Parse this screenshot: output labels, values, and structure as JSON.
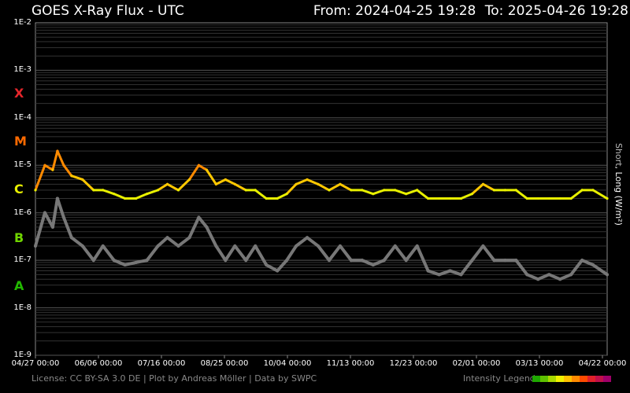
{
  "header": {
    "title": "GOES X-Ray Flux - UTC",
    "from": "From: 2024-04-25 19:28",
    "to": "To: 2025-04-26 19:28"
  },
  "flare_classes": [
    {
      "label": "X",
      "color": "#e4262b"
    },
    {
      "label": "M",
      "color": "#ff6a00"
    },
    {
      "label": "C",
      "color": "#e8f000"
    },
    {
      "label": "B",
      "color": "#6fd400"
    },
    {
      "label": "A",
      "color": "#22b800"
    }
  ],
  "right_axis_label": {
    "short": "Short",
    "sep": ", ",
    "long": "Long (W/m²)"
  },
  "footer": {
    "license": "License: CC BY-SA 3.0 DE | Plot by Andreas Möller | Data by SWPC",
    "legend_label": "Intensity Legend",
    "legend_colors": [
      "#1fa800",
      "#5ec000",
      "#a8d800",
      "#f0f000",
      "#ffc000",
      "#ff8a00",
      "#ff4a00",
      "#e0202a",
      "#c0104a",
      "#a0006a"
    ]
  },
  "chart_data": {
    "type": "line",
    "title": "GOES X-Ray Flux - UTC",
    "yscale": "log",
    "ylim": [
      1e-09,
      0.01
    ],
    "ylabel": "Short, Long (W/m²)",
    "ytick_labels": [
      "1E-2",
      "1E-3",
      "1E-4",
      "1E-5",
      "1E-6",
      "1E-7",
      "1E-8",
      "1E-9"
    ],
    "xlim": [
      "2024-04-27",
      "2025-04-26"
    ],
    "xtick_labels": [
      "04/27 00:00",
      "06/06 00:00",
      "07/16 00:00",
      "08/25 00:00",
      "10/04 00:00",
      "11/13 00:00",
      "12/23 00:00",
      "02/01 00:00",
      "03/13 00:00",
      "04/22 00:00"
    ],
    "grid": true,
    "series": [
      {
        "name": "Long",
        "color_scale": "intensity",
        "x": [
          "2024-04-27",
          "2024-05-03",
          "2024-05-08",
          "2024-05-11",
          "2024-05-15",
          "2024-05-20",
          "2024-05-27",
          "2024-06-03",
          "2024-06-09",
          "2024-06-16",
          "2024-06-23",
          "2024-06-30",
          "2024-07-07",
          "2024-07-14",
          "2024-07-20",
          "2024-07-27",
          "2024-08-03",
          "2024-08-09",
          "2024-08-14",
          "2024-08-20",
          "2024-08-26",
          "2024-09-01",
          "2024-09-08",
          "2024-09-14",
          "2024-09-21",
          "2024-09-28",
          "2024-10-04",
          "2024-10-10",
          "2024-10-17",
          "2024-10-24",
          "2024-10-31",
          "2024-11-07",
          "2024-11-14",
          "2024-11-21",
          "2024-11-28",
          "2024-12-05",
          "2024-12-12",
          "2024-12-19",
          "2024-12-26",
          "2025-01-02",
          "2025-01-09",
          "2025-01-16",
          "2025-01-23",
          "2025-01-30",
          "2025-02-06",
          "2025-02-13",
          "2025-02-20",
          "2025-02-27",
          "2025-03-06",
          "2025-03-13",
          "2025-03-20",
          "2025-03-27",
          "2025-04-03",
          "2025-04-10",
          "2025-04-17",
          "2025-04-26"
        ],
        "y": [
          3e-06,
          1e-05,
          8e-06,
          2e-05,
          1e-05,
          6e-06,
          5e-06,
          3e-06,
          3e-06,
          2.5e-06,
          2e-06,
          2e-06,
          2.5e-06,
          3e-06,
          4e-06,
          3e-06,
          5e-06,
          1e-05,
          8e-06,
          4e-06,
          5e-06,
          4e-06,
          3e-06,
          3e-06,
          2e-06,
          2e-06,
          2.5e-06,
          4e-06,
          5e-06,
          4e-06,
          3e-06,
          4e-06,
          3e-06,
          3e-06,
          2.5e-06,
          3e-06,
          3e-06,
          2.5e-06,
          3e-06,
          2e-06,
          2e-06,
          2e-06,
          2e-06,
          2.5e-06,
          4e-06,
          3e-06,
          3e-06,
          3e-06,
          2e-06,
          2e-06,
          2e-06,
          2e-06,
          2e-06,
          3e-06,
          3e-06,
          2e-06
        ]
      },
      {
        "name": "Short",
        "color": "#777777",
        "x": [
          "2024-04-27",
          "2024-05-03",
          "2024-05-08",
          "2024-05-11",
          "2024-05-15",
          "2024-05-20",
          "2024-05-27",
          "2024-06-03",
          "2024-06-09",
          "2024-06-16",
          "2024-06-23",
          "2024-06-30",
          "2024-07-07",
          "2024-07-14",
          "2024-07-20",
          "2024-07-27",
          "2024-08-03",
          "2024-08-09",
          "2024-08-14",
          "2024-08-20",
          "2024-08-26",
          "2024-09-01",
          "2024-09-08",
          "2024-09-14",
          "2024-09-21",
          "2024-09-28",
          "2024-10-04",
          "2024-10-10",
          "2024-10-17",
          "2024-10-24",
          "2024-10-31",
          "2024-11-07",
          "2024-11-14",
          "2024-11-21",
          "2024-11-28",
          "2024-12-05",
          "2024-12-12",
          "2024-12-19",
          "2024-12-26",
          "2025-01-02",
          "2025-01-09",
          "2025-01-16",
          "2025-01-23",
          "2025-01-30",
          "2025-02-06",
          "2025-02-13",
          "2025-02-20",
          "2025-02-27",
          "2025-03-06",
          "2025-03-13",
          "2025-03-20",
          "2025-03-27",
          "2025-04-03",
          "2025-04-10",
          "2025-04-17",
          "2025-04-26"
        ],
        "y": [
          2e-07,
          1e-06,
          5e-07,
          2e-06,
          8e-07,
          3e-07,
          2e-07,
          1e-07,
          2e-07,
          1e-07,
          8e-08,
          9e-08,
          1e-07,
          2e-07,
          3e-07,
          2e-07,
          3e-07,
          8e-07,
          5e-07,
          2e-07,
          1e-07,
          2e-07,
          1e-07,
          2e-07,
          8e-08,
          6e-08,
          1e-07,
          2e-07,
          3e-07,
          2e-07,
          1e-07,
          2e-07,
          1e-07,
          1e-07,
          8e-08,
          1e-07,
          2e-07,
          1e-07,
          2e-07,
          6e-08,
          5e-08,
          6e-08,
          5e-08,
          1e-07,
          2e-07,
          1e-07,
          1e-07,
          1e-07,
          5e-08,
          4e-08,
          5e-08,
          4e-08,
          5e-08,
          1e-07,
          8e-08,
          5e-08
        ]
      }
    ]
  }
}
